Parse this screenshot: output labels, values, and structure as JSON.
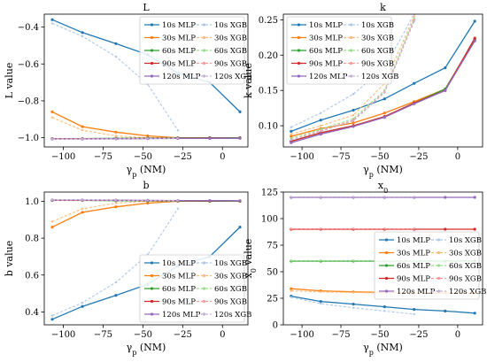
{
  "figure": {
    "xlabel_main": "γ",
    "xlabel_sub": "p",
    "xlabel_unit": " (NM)"
  },
  "series_styles": [
    {
      "name": "10s MLP",
      "color": "#1f77b4",
      "dash": false
    },
    {
      "name": "10s XGB",
      "color": "#aec7e8",
      "dash": true
    },
    {
      "name": "30s MLP",
      "color": "#ff7f0e",
      "dash": false
    },
    {
      "name": "30s XGB",
      "color": "#ffbb78",
      "dash": true
    },
    {
      "name": "60s MLP",
      "color": "#2ca02c",
      "dash": false
    },
    {
      "name": "60s XGB",
      "color": "#98df8a",
      "dash": true
    },
    {
      "name": "90s MLP",
      "color": "#d62728",
      "dash": false
    },
    {
      "name": "90s XGB",
      "color": "#ff9896",
      "dash": true
    },
    {
      "name": "120s MLP",
      "color": "#9467bd",
      "dash": false
    },
    {
      "name": "120s XGB",
      "color": "#c5b0d5",
      "dash": true
    }
  ],
  "chart_data": [
    {
      "type": "line",
      "title": "L",
      "ylabel": "L value",
      "xlim": [
        -112,
        16
      ],
      "ylim": [
        -1.05,
        -0.33
      ],
      "xticks": [
        -100,
        -75,
        -50,
        -25,
        0
      ],
      "yticks": [
        -1.0,
        -0.8,
        -0.6,
        -0.4
      ],
      "ytick_labels": [
        "−1.0",
        "−0.8",
        "−0.6",
        "−0.4"
      ],
      "legend": "top-right",
      "series": [
        {
          "name": "10s MLP",
          "x": [
            -107,
            -88,
            -67,
            -47,
            -28,
            -8,
            11
          ],
          "y": [
            -0.36,
            -0.43,
            -0.49,
            -0.55,
            -0.65,
            -0.7,
            -0.86
          ]
        },
        {
          "name": "10s XGB",
          "x": [
            -107,
            -88,
            -67,
            -47,
            -28
          ],
          "y": [
            -0.38,
            -0.45,
            -0.56,
            -0.71,
            -0.96
          ]
        },
        {
          "name": "30s MLP",
          "x": [
            -107,
            -88,
            -67,
            -47,
            -28,
            -8,
            11
          ],
          "y": [
            -0.86,
            -0.94,
            -0.97,
            -0.99,
            -1.0,
            -1.0,
            -1.0
          ]
        },
        {
          "name": "30s XGB",
          "x": [
            -107,
            -88,
            -67,
            -47,
            -28
          ],
          "y": [
            -0.89,
            -0.96,
            -0.99,
            -1.0,
            -1.0
          ]
        },
        {
          "name": "60s MLP",
          "x": [
            -107,
            -88,
            -67,
            -47,
            -28,
            -8,
            11
          ],
          "y": [
            -1.005,
            -1.005,
            -1.003,
            -1.002,
            -1.001,
            -1.0,
            -1.0
          ]
        },
        {
          "name": "60s XGB",
          "x": [
            -107,
            -88,
            -67,
            -47,
            -28
          ],
          "y": [
            -1.005,
            -1.004,
            -1.003,
            -1.002,
            -1.001
          ]
        },
        {
          "name": "90s MLP",
          "x": [
            -107,
            -88,
            -67,
            -47,
            -28,
            -8,
            11
          ],
          "y": [
            -1.006,
            -1.006,
            -1.005,
            -1.004,
            -1.003,
            -1.002,
            -1.002
          ]
        },
        {
          "name": "90s XGB",
          "x": [
            -107,
            -88,
            -67,
            -47,
            -28
          ],
          "y": [
            -1.006,
            -1.006,
            -1.005,
            -1.004,
            -1.003
          ]
        },
        {
          "name": "120s MLP",
          "x": [
            -107,
            -88,
            -67,
            -47,
            -28,
            -8,
            11
          ],
          "y": [
            -1.007,
            -1.007,
            -1.006,
            -1.005,
            -1.004,
            -1.004,
            -1.003
          ]
        },
        {
          "name": "120s XGB",
          "x": [
            -107,
            -88,
            -67,
            -47,
            -28
          ],
          "y": [
            -1.007,
            -1.007,
            -1.006,
            -1.005,
            -1.004
          ]
        }
      ]
    },
    {
      "type": "line",
      "title": "k",
      "ylabel": "k value",
      "xlim": [
        -112,
        16
      ],
      "ylim": [
        0.07,
        0.258
      ],
      "xticks": [
        -100,
        -75,
        -50,
        -25,
        0
      ],
      "yticks": [
        0.1,
        0.15,
        0.2,
        0.25
      ],
      "ytick_labels": [
        "0.10",
        "0.15",
        "0.20",
        "0.25"
      ],
      "legend": "top-left",
      "series": [
        {
          "name": "10s MLP",
          "x": [
            -107,
            -88,
            -67,
            -47,
            -28,
            -8,
            11
          ],
          "y": [
            0.092,
            0.108,
            0.122,
            0.138,
            0.16,
            0.182,
            0.248
          ]
        },
        {
          "name": "10s XGB",
          "x": [
            -107,
            -88,
            -67,
            -47,
            -28
          ],
          "y": [
            0.098,
            0.118,
            0.145,
            0.182,
            0.258
          ]
        },
        {
          "name": "30s MLP",
          "x": [
            -107,
            -88,
            -67,
            -47,
            -28,
            -8,
            11
          ],
          "y": [
            0.085,
            0.096,
            0.104,
            0.118,
            0.134,
            0.152,
            0.222
          ]
        },
        {
          "name": "30s XGB",
          "x": [
            -107,
            -88,
            -67,
            -47,
            -28
          ],
          "y": [
            0.088,
            0.1,
            0.115,
            0.16,
            0.255
          ]
        },
        {
          "name": "60s MLP",
          "x": [
            -107,
            -88,
            -67,
            -47,
            -28,
            -8,
            11
          ],
          "y": [
            0.078,
            0.09,
            0.1,
            0.113,
            0.132,
            0.152,
            0.222
          ]
        },
        {
          "name": "60s XGB",
          "x": [
            -107,
            -88,
            -67,
            -47,
            -28
          ],
          "y": [
            0.082,
            0.095,
            0.11,
            0.15,
            0.252
          ]
        },
        {
          "name": "90s MLP",
          "x": [
            -107,
            -88,
            -67,
            -47,
            -28,
            -8,
            11
          ],
          "y": [
            0.078,
            0.09,
            0.1,
            0.113,
            0.132,
            0.15,
            0.224
          ]
        },
        {
          "name": "90s XGB",
          "x": [
            -107,
            -88,
            -67,
            -47,
            -28
          ],
          "y": [
            0.08,
            0.093,
            0.108,
            0.148,
            0.25
          ]
        },
        {
          "name": "120s MLP",
          "x": [
            -107,
            -88,
            -67,
            -47,
            -28,
            -8,
            11
          ],
          "y": [
            0.076,
            0.088,
            0.099,
            0.112,
            0.131,
            0.15,
            0.22
          ]
        },
        {
          "name": "120s XGB",
          "x": [
            -107,
            -88,
            -67,
            -47,
            -28
          ],
          "y": [
            0.08,
            0.092,
            0.107,
            0.147,
            0.248
          ]
        }
      ]
    },
    {
      "type": "line",
      "title": "b",
      "ylabel": "b value",
      "xlim": [
        -112,
        16
      ],
      "ylim": [
        0.33,
        1.05
      ],
      "xticks": [
        -100,
        -75,
        -50,
        -25,
        0
      ],
      "yticks": [
        0.4,
        0.6,
        0.8,
        1.0
      ],
      "ytick_labels": [
        "0.4",
        "0.6",
        "0.8",
        "1.0"
      ],
      "legend": "bottom-right",
      "series": [
        {
          "name": "10s MLP",
          "x": [
            -107,
            -88,
            -67,
            -47,
            -28,
            -8,
            11
          ],
          "y": [
            0.36,
            0.43,
            0.49,
            0.55,
            0.65,
            0.7,
            0.86
          ]
        },
        {
          "name": "10s XGB",
          "x": [
            -107,
            -88,
            -67,
            -47,
            -28
          ],
          "y": [
            0.38,
            0.45,
            0.56,
            0.71,
            0.96
          ]
        },
        {
          "name": "30s MLP",
          "x": [
            -107,
            -88,
            -67,
            -47,
            -28,
            -8,
            11
          ],
          "y": [
            0.86,
            0.94,
            0.97,
            0.99,
            1.0,
            1.0,
            1.0
          ]
        },
        {
          "name": "30s XGB",
          "x": [
            -107,
            -88,
            -67,
            -47,
            -28
          ],
          "y": [
            0.89,
            0.96,
            0.99,
            1.0,
            1.0
          ]
        },
        {
          "name": "60s MLP",
          "x": [
            -107,
            -88,
            -67,
            -47,
            -28,
            -8,
            11
          ],
          "y": [
            1.005,
            1.005,
            1.003,
            1.002,
            1.001,
            1.0,
            1.0
          ]
        },
        {
          "name": "60s XGB",
          "x": [
            -107,
            -88,
            -67,
            -47,
            -28
          ],
          "y": [
            1.005,
            1.004,
            1.003,
            1.002,
            1.001
          ]
        },
        {
          "name": "90s MLP",
          "x": [
            -107,
            -88,
            -67,
            -47,
            -28,
            -8,
            11
          ],
          "y": [
            1.006,
            1.006,
            1.005,
            1.004,
            1.003,
            1.002,
            1.002
          ]
        },
        {
          "name": "90s XGB",
          "x": [
            -107,
            -88,
            -67,
            -47,
            -28
          ],
          "y": [
            1.006,
            1.006,
            1.005,
            1.004,
            1.003
          ]
        },
        {
          "name": "120s MLP",
          "x": [
            -107,
            -88,
            -67,
            -47,
            -28,
            -8,
            11
          ],
          "y": [
            1.007,
            1.007,
            1.006,
            1.005,
            1.004,
            1.004,
            1.003
          ]
        },
        {
          "name": "120s XGB",
          "x": [
            -107,
            -88,
            -67,
            -47,
            -28
          ],
          "y": [
            1.007,
            1.007,
            1.006,
            1.005,
            1.004
          ]
        }
      ]
    },
    {
      "type": "line",
      "title": "x",
      "title_sub": "0",
      "ylabel": "x",
      "ylabel_sub": "0",
      "ylabel_unit": " value",
      "xlim": [
        -112,
        16
      ],
      "ylim": [
        0,
        125
      ],
      "xticks": [
        -100,
        -75,
        -50,
        -25,
        0
      ],
      "yticks": [
        0,
        25,
        50,
        75,
        100,
        125
      ],
      "ytick_labels": [
        "0",
        "25",
        "50",
        "75",
        "100",
        "125"
      ],
      "legend": "center-right",
      "series": [
        {
          "name": "10s MLP",
          "x": [
            -107,
            -88,
            -67,
            -47,
            -28,
            -8,
            11
          ],
          "y": [
            27,
            22,
            19.5,
            17,
            14.5,
            13,
            11
          ]
        },
        {
          "name": "10s XGB",
          "x": [
            -107,
            -88,
            -67,
            -47,
            -28
          ],
          "y": [
            26,
            20,
            16,
            13,
            10
          ]
        },
        {
          "name": "30s MLP",
          "x": [
            -107,
            -88,
            -67,
            -47,
            -28,
            -8,
            11
          ],
          "y": [
            34,
            32,
            31,
            30.5,
            30,
            29.8,
            29.8
          ]
        },
        {
          "name": "30s XGB",
          "x": [
            -107,
            -88,
            -67,
            -47,
            -28
          ],
          "y": [
            32,
            31,
            30.5,
            30,
            30
          ]
        },
        {
          "name": "60s MLP",
          "x": [
            -107,
            -88,
            -67,
            -47,
            -28,
            -8,
            11
          ],
          "y": [
            60,
            60,
            60,
            60,
            60,
            60,
            60
          ]
        },
        {
          "name": "60s XGB",
          "x": [
            -107,
            -88,
            -67,
            -47,
            -28
          ],
          "y": [
            60.3,
            60.3,
            60.3,
            60.3,
            60.3
          ]
        },
        {
          "name": "90s MLP",
          "x": [
            -107,
            -88,
            -67,
            -47,
            -28,
            -8,
            11
          ],
          "y": [
            90,
            90,
            90,
            90,
            90,
            90,
            90
          ]
        },
        {
          "name": "90s XGB",
          "x": [
            -107,
            -88,
            -67,
            -47,
            -28
          ],
          "y": [
            90.3,
            90.3,
            90.3,
            90.3,
            90.3
          ]
        },
        {
          "name": "120s MLP",
          "x": [
            -107,
            -88,
            -67,
            -47,
            -28,
            -8,
            11
          ],
          "y": [
            120,
            120,
            120,
            120,
            120,
            120,
            120
          ]
        },
        {
          "name": "120s XGB",
          "x": [
            -107,
            -88,
            -67,
            -47,
            -28
          ],
          "y": [
            120.3,
            120.3,
            120.3,
            120.3,
            120.3
          ]
        }
      ]
    }
  ]
}
